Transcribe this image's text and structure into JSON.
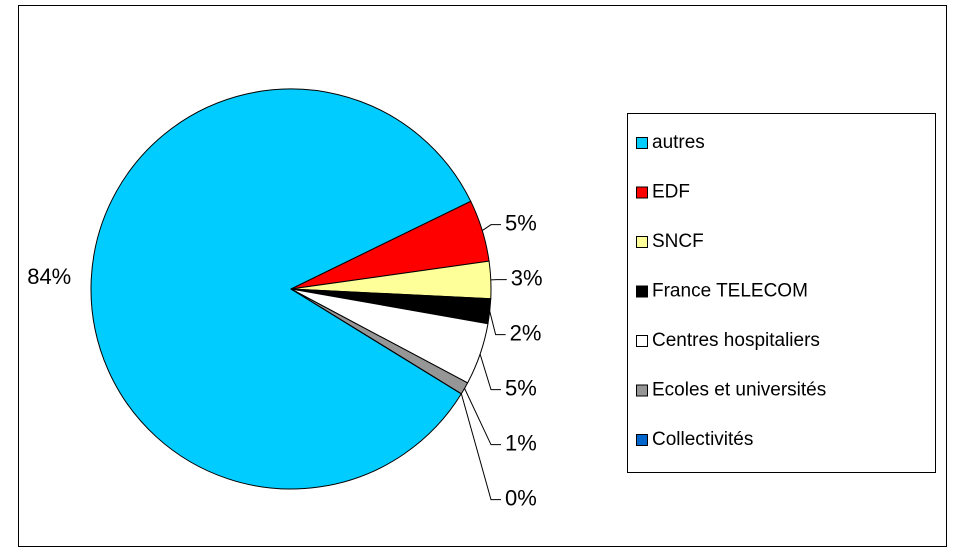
{
  "chart_data": {
    "type": "pie",
    "categories": [
      "autres",
      "EDF",
      "SNCF",
      "France TELECOM",
      "Centres hospitaliers",
      "Ecoles et universités",
      "Collectivités"
    ],
    "values": [
      84,
      5,
      3,
      2,
      5,
      1,
      0
    ],
    "value_labels": [
      "84%",
      "5%",
      "3%",
      "2%",
      "5%",
      "1%",
      "0%"
    ],
    "colors": [
      "#00ccff",
      "#ff0000",
      "#ffff99",
      "#000000",
      "#ffffff",
      "#969696",
      "#0066cc"
    ],
    "legend": "right"
  }
}
